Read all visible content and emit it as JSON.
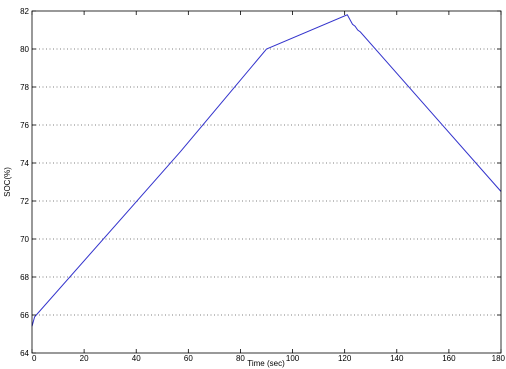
{
  "chart_data": {
    "type": "line",
    "title": "",
    "xlabel": "Time (sec)",
    "ylabel": "SOC(%)",
    "xlim": [
      0,
      180
    ],
    "ylim": [
      64,
      82
    ],
    "xticks": [
      0,
      20,
      40,
      60,
      80,
      100,
      120,
      140,
      160,
      180
    ],
    "yticks": [
      64,
      66,
      68,
      70,
      72,
      74,
      76,
      78,
      80,
      82
    ],
    "grid": "y-dotted",
    "line_color": "#3333cc",
    "series": [
      {
        "x": [
          0,
          1,
          57,
          90,
          121,
          123,
          124,
          125,
          126,
          180
        ],
        "y": [
          65.4,
          65.9,
          74.6,
          80.0,
          81.8,
          81.3,
          81.2,
          81.0,
          80.9,
          72.5
        ]
      }
    ]
  }
}
